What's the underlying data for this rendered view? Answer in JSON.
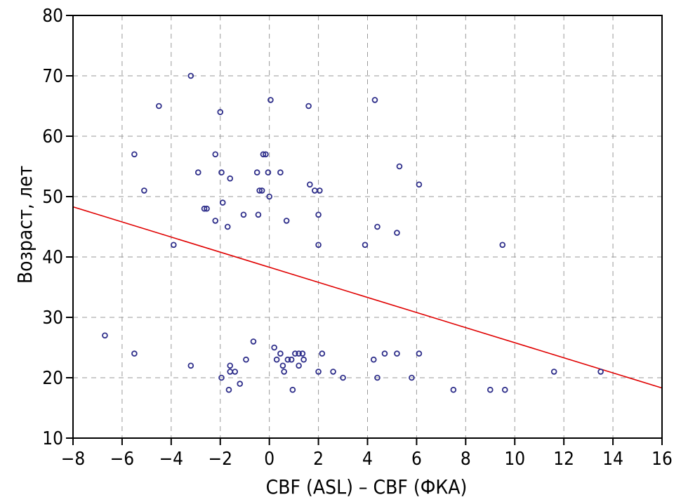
{
  "chart_data": {
    "type": "scatter",
    "xlabel": "CBF (ASL) – CBF (ФКА)",
    "ylabel": "Возраст, лет",
    "xlim": [
      -8,
      16
    ],
    "ylim": [
      10,
      80
    ],
    "xticks": [
      -8,
      -6,
      -4,
      -2,
      0,
      2,
      4,
      6,
      8,
      10,
      12,
      14,
      16
    ],
    "yticks": [
      10,
      20,
      30,
      40,
      50,
      60,
      70,
      80
    ],
    "xtick_labels": [
      "−8",
      "−6",
      "−4",
      "−2",
      "0",
      "2",
      "4",
      "6",
      "8",
      "10",
      "12",
      "14",
      "16"
    ],
    "ytick_labels": [
      "10",
      "20",
      "30",
      "40",
      "50",
      "60",
      "70",
      "80"
    ],
    "grid": true,
    "colors": {
      "points": "#2e2e8a",
      "line": "#e00000",
      "grid": "#9a9a9a",
      "axis": "#000000"
    },
    "regression_line": {
      "x": [
        -8,
        16
      ],
      "y": [
        48.3,
        18.3
      ]
    },
    "points": [
      [
        -6.7,
        27
      ],
      [
        -5.5,
        57
      ],
      [
        -5.5,
        24
      ],
      [
        -5.1,
        51
      ],
      [
        -4.5,
        65
      ],
      [
        -3.9,
        42
      ],
      [
        -3.2,
        70
      ],
      [
        -3.2,
        22
      ],
      [
        -2.9,
        54
      ],
      [
        -2.65,
        48
      ],
      [
        -2.55,
        48
      ],
      [
        -2.2,
        57
      ],
      [
        -2.2,
        46
      ],
      [
        -2.0,
        64
      ],
      [
        -1.95,
        54
      ],
      [
        -1.9,
        49
      ],
      [
        -1.95,
        20
      ],
      [
        -1.7,
        45
      ],
      [
        -1.6,
        53
      ],
      [
        -1.6,
        22
      ],
      [
        -1.6,
        21
      ],
      [
        -1.65,
        18
      ],
      [
        -1.4,
        21
      ],
      [
        -1.2,
        19
      ],
      [
        -1.05,
        47
      ],
      [
        -0.95,
        23
      ],
      [
        -0.65,
        26
      ],
      [
        -0.5,
        54
      ],
      [
        -0.45,
        47
      ],
      [
        -0.4,
        51
      ],
      [
        -0.3,
        51
      ],
      [
        -0.25,
        57
      ],
      [
        -0.15,
        57
      ],
      [
        -0.05,
        54
      ],
      [
        0.0,
        50
      ],
      [
        0.05,
        66
      ],
      [
        0.2,
        25
      ],
      [
        0.3,
        23
      ],
      [
        0.45,
        54
      ],
      [
        0.45,
        24
      ],
      [
        0.55,
        22
      ],
      [
        0.6,
        21
      ],
      [
        0.7,
        46
      ],
      [
        0.75,
        23
      ],
      [
        0.9,
        23
      ],
      [
        0.95,
        18
      ],
      [
        1.05,
        24
      ],
      [
        1.2,
        24
      ],
      [
        1.2,
        22
      ],
      [
        1.35,
        24
      ],
      [
        1.4,
        23
      ],
      [
        1.6,
        65
      ],
      [
        1.65,
        52
      ],
      [
        1.85,
        51
      ],
      [
        2.05,
        51
      ],
      [
        2.0,
        47
      ],
      [
        2.0,
        42
      ],
      [
        2.0,
        21
      ],
      [
        2.15,
        24
      ],
      [
        2.6,
        21
      ],
      [
        3.0,
        20
      ],
      [
        3.9,
        42
      ],
      [
        4.25,
        23
      ],
      [
        4.3,
        66
      ],
      [
        4.4,
        45
      ],
      [
        4.4,
        20
      ],
      [
        4.7,
        24
      ],
      [
        5.2,
        44
      ],
      [
        5.2,
        24
      ],
      [
        5.3,
        55
      ],
      [
        5.8,
        20
      ],
      [
        6.1,
        52
      ],
      [
        6.1,
        24
      ],
      [
        7.5,
        18
      ],
      [
        9.0,
        18
      ],
      [
        9.5,
        42
      ],
      [
        9.6,
        18
      ],
      [
        11.6,
        21
      ],
      [
        13.5,
        21
      ]
    ]
  }
}
